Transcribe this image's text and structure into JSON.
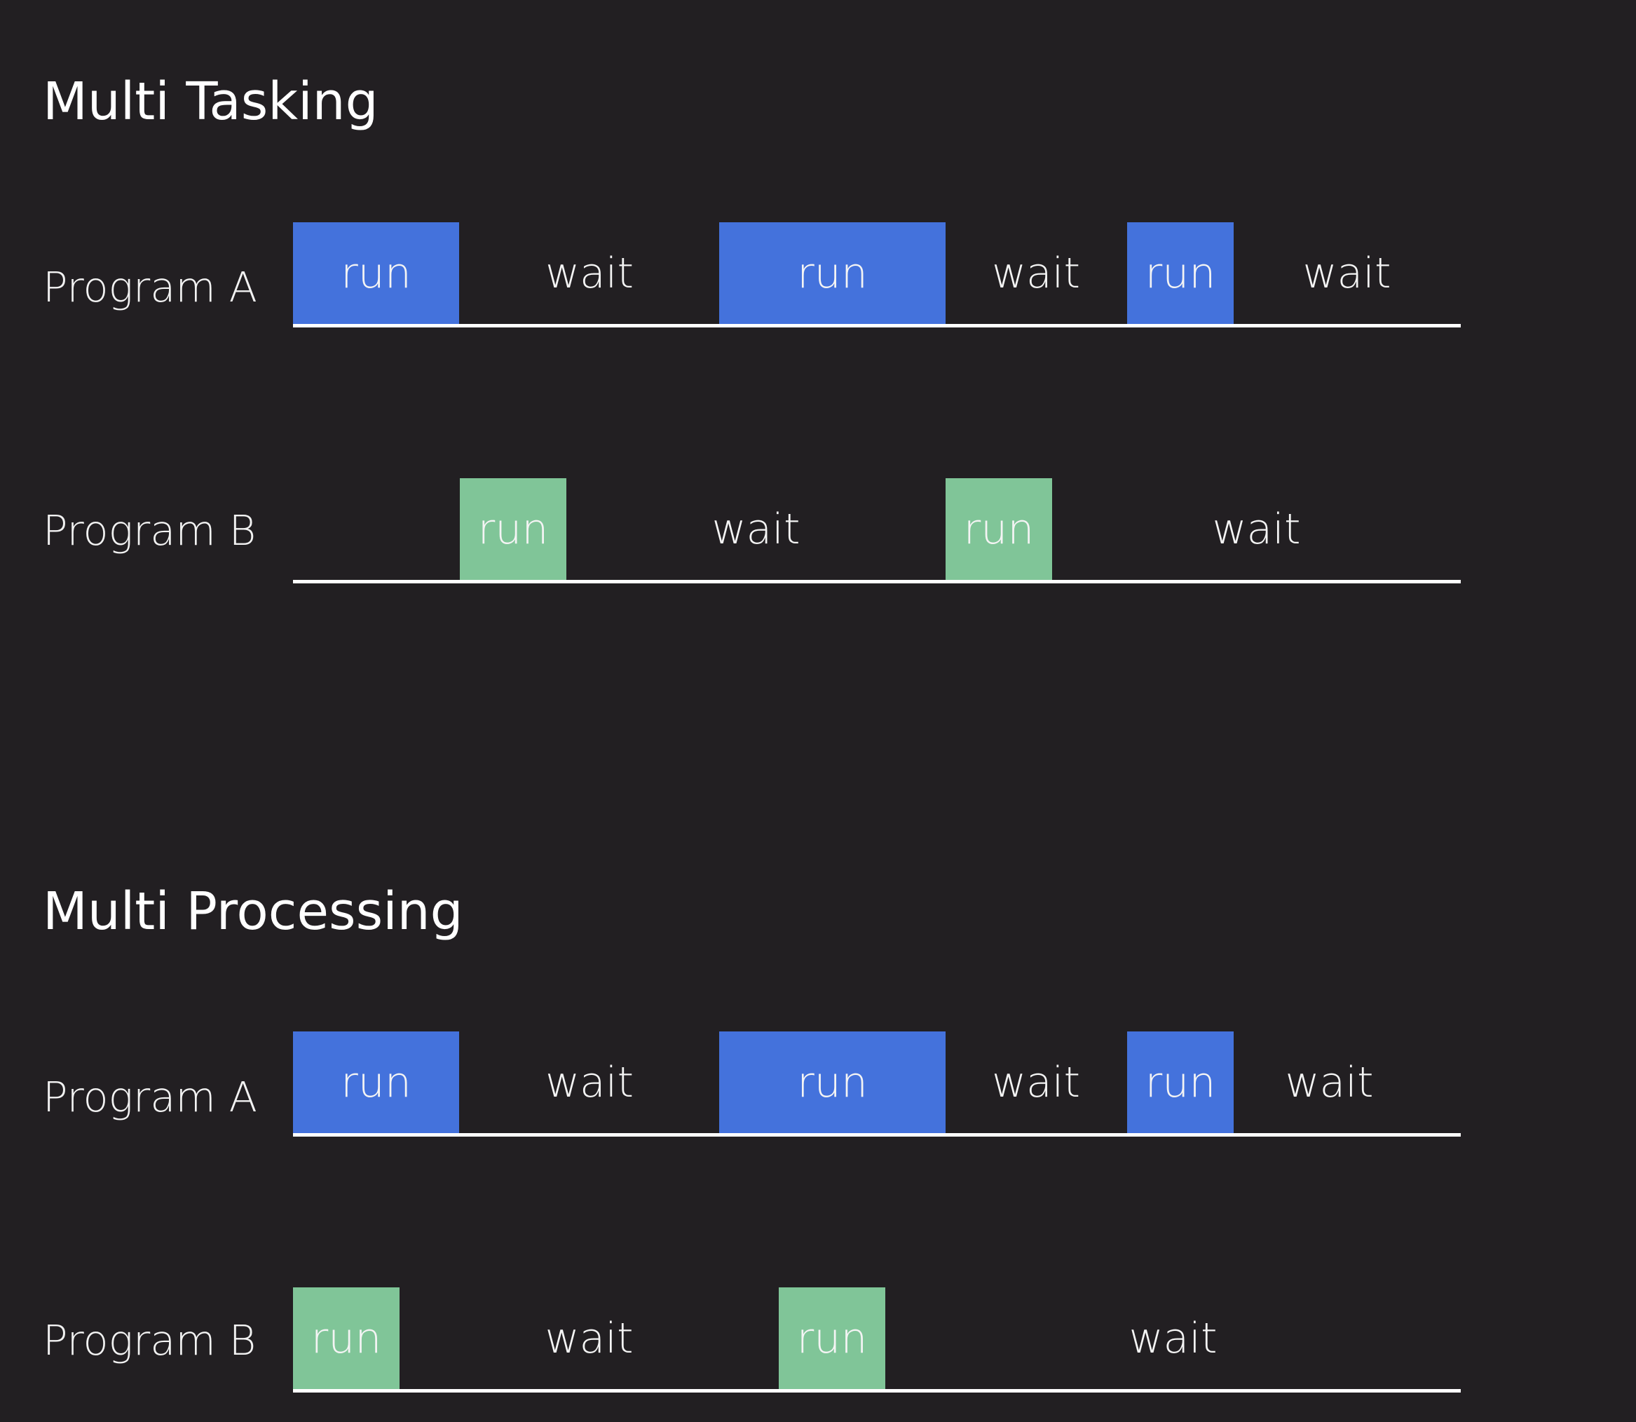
{
  "sections": [
    {
      "title": "Multi Tasking",
      "rows": [
        {
          "label": "Program  A",
          "segments": [
            {
              "kind": "run",
              "program": "a",
              "label": "run",
              "start": 0.0,
              "end": 0.142
            },
            {
              "kind": "wait",
              "label": "wait",
              "start": 0.142,
              "end": 0.365
            },
            {
              "kind": "run",
              "program": "a",
              "label": "run",
              "start": 0.365,
              "end": 0.559
            },
            {
              "kind": "wait",
              "label": "wait",
              "start": 0.559,
              "end": 0.714
            },
            {
              "kind": "run",
              "program": "a",
              "label": "run",
              "start": 0.714,
              "end": 0.805
            },
            {
              "kind": "wait",
              "label": "wait",
              "start": 0.805,
              "end": 1.0
            }
          ]
        },
        {
          "label": "Program  B",
          "segments": [
            {
              "kind": "run",
              "program": "b",
              "label": "run",
              "start": 0.143,
              "end": 0.234
            },
            {
              "kind": "wait",
              "label": "wait",
              "start": 0.234,
              "end": 0.559
            },
            {
              "kind": "run",
              "program": "b",
              "label": "run",
              "start": 0.559,
              "end": 0.65
            },
            {
              "kind": "wait",
              "label": "wait",
              "start": 0.65,
              "end": 1.0
            }
          ]
        }
      ]
    },
    {
      "title": "Multi Processing",
      "rows": [
        {
          "label": "Program  A",
          "segments": [
            {
              "kind": "run",
              "program": "a",
              "label": "run",
              "start": 0.0,
              "end": 0.142
            },
            {
              "kind": "wait",
              "label": "wait",
              "start": 0.142,
              "end": 0.365
            },
            {
              "kind": "run",
              "program": "a",
              "label": "run",
              "start": 0.365,
              "end": 0.559
            },
            {
              "kind": "wait",
              "label": "wait",
              "start": 0.559,
              "end": 0.714
            },
            {
              "kind": "run",
              "program": "a",
              "label": "run",
              "start": 0.714,
              "end": 0.805
            },
            {
              "kind": "wait",
              "label": "wait",
              "start": 0.805,
              "end": 0.97
            }
          ]
        },
        {
          "label": "Program  B",
          "segments": [
            {
              "kind": "run",
              "program": "b",
              "label": "run",
              "start": 0.0,
              "end": 0.091
            },
            {
              "kind": "wait",
              "label": "wait",
              "start": 0.091,
              "end": 0.416
            },
            {
              "kind": "run",
              "program": "b",
              "label": "run",
              "start": 0.416,
              "end": 0.507
            },
            {
              "kind": "wait",
              "label": "wait",
              "start": 0.507,
              "end": 1.0
            }
          ]
        }
      ]
    }
  ],
  "colors": {
    "background": "#221f22",
    "program_a_run": "#4472dc",
    "program_b_run": "#80c598",
    "baseline": "#ffffff",
    "text": "#ffffff"
  }
}
